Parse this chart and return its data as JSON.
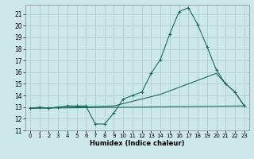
{
  "xlabel": "Humidex (Indice chaleur)",
  "background_color": "#cce8e8",
  "grid_color": "#b0cccc",
  "line_color": "#1a6b5a",
  "xlim": [
    -0.5,
    23.5
  ],
  "ylim": [
    11,
    21.8
  ],
  "yticks": [
    11,
    12,
    13,
    14,
    15,
    16,
    17,
    18,
    19,
    20,
    21
  ],
  "xticks": [
    0,
    1,
    2,
    3,
    4,
    5,
    6,
    7,
    8,
    9,
    10,
    11,
    12,
    13,
    14,
    15,
    16,
    17,
    18,
    19,
    20,
    21,
    22,
    23
  ],
  "line1_x": [
    0,
    1,
    2,
    3,
    4,
    5,
    6,
    7,
    8,
    9,
    10,
    11,
    12,
    13,
    14,
    15,
    16,
    17,
    18,
    19,
    20,
    21,
    22,
    23
  ],
  "line1_y": [
    12.9,
    13.0,
    12.9,
    13.0,
    13.1,
    13.1,
    13.1,
    11.55,
    11.55,
    12.5,
    13.7,
    14.0,
    14.3,
    15.9,
    17.1,
    19.3,
    21.2,
    21.55,
    20.1,
    18.2,
    16.2,
    15.0,
    14.3,
    13.1
  ],
  "line2_x": [
    0,
    23
  ],
  "line2_y": [
    12.9,
    13.1
  ],
  "line3_x": [
    0,
    9,
    10,
    11,
    12,
    13,
    14,
    15,
    16,
    17,
    18,
    19,
    20,
    21,
    22,
    23
  ],
  "line3_y": [
    12.9,
    13.1,
    13.3,
    13.5,
    13.7,
    13.9,
    14.1,
    14.4,
    14.7,
    15.0,
    15.3,
    15.6,
    15.9,
    15.0,
    14.3,
    13.1
  ]
}
